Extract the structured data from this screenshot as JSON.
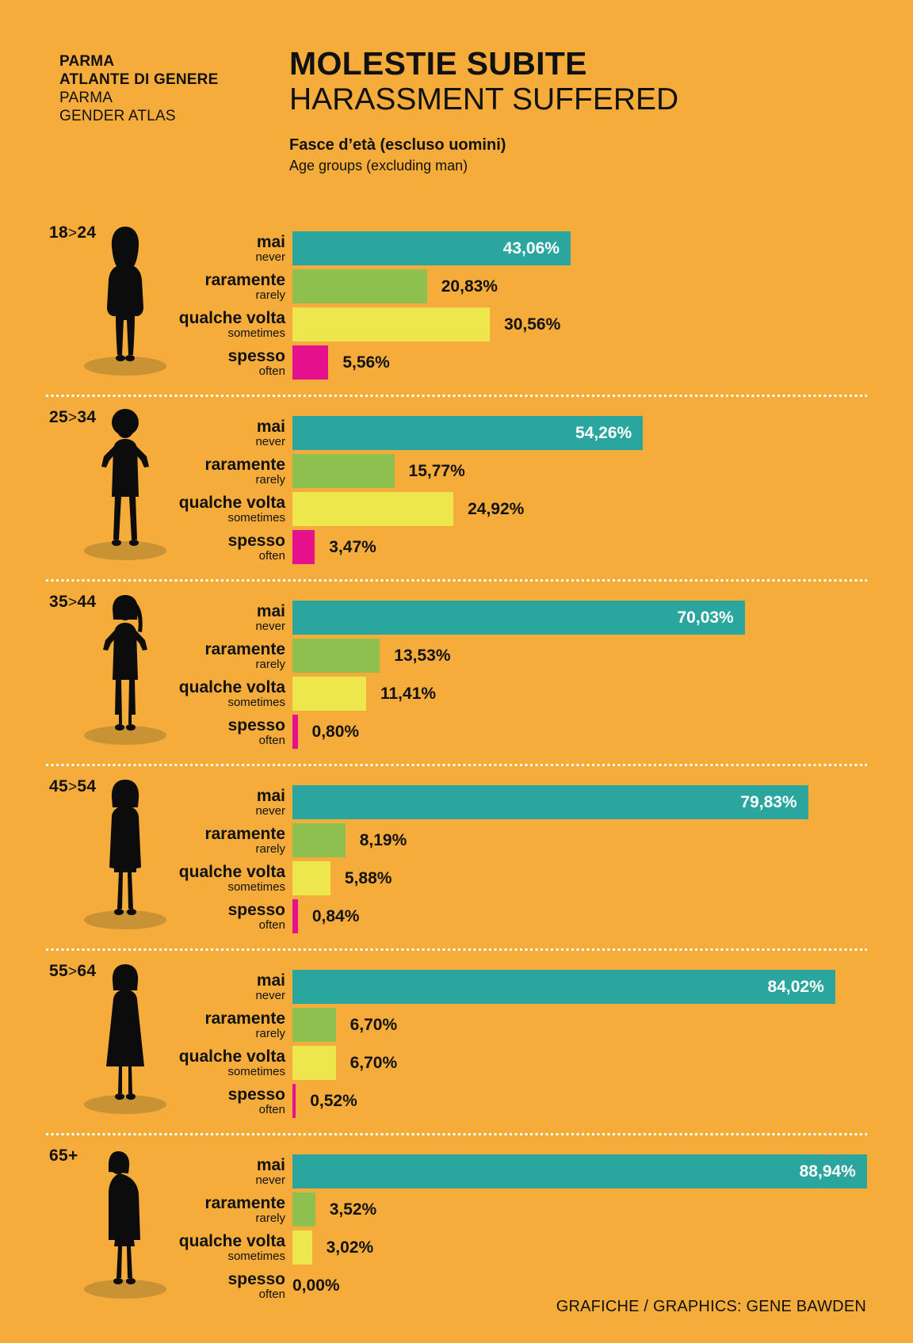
{
  "header": {
    "brand_lines": [
      "PARMA",
      "ATLANTE DI GENERE",
      "PARMA",
      "GENDER ATLAS"
    ],
    "title_it": "MOLESTIE SUBITE",
    "title_en": "HARASSMENT SUFFERED",
    "subtitle_it": "Fasce d’età (escluso uomini)",
    "subtitle_en": "Age groups (excluding man)"
  },
  "footer": {
    "credit": "GRAFICHE / GRAPHICS: GENE BAWDEN"
  },
  "colors": {
    "background": "#F5AC3B",
    "bar_never": "#2AA69E",
    "bar_rarely": "#8EC04F",
    "bar_sometimes": "#EDE74D",
    "bar_often": "#E5108C",
    "figure_shadow": "#C99234",
    "silhouette": "#0C0C0C",
    "separator": "#FFFFFF"
  },
  "chart_data": {
    "type": "bar",
    "orientation": "horizontal",
    "value_unit": "percent",
    "xlim": [
      0,
      100
    ],
    "title": "MOLESTIE SUBITE / HARASSMENT SUFFERED",
    "subtitle": "Fasce d’età (escluso uomini) / Age groups (excluding man)",
    "legend_position": "none",
    "grid": false,
    "categories": [
      {
        "it": "mai",
        "en": "never"
      },
      {
        "it": "raramente",
        "en": "rarely"
      },
      {
        "it": "qualche volta",
        "en": "sometimes"
      },
      {
        "it": "spesso",
        "en": "often"
      }
    ],
    "category_colors": [
      "#2AA69E",
      "#8EC04F",
      "#EDE74D",
      "#E5108C"
    ],
    "groups": [
      {
        "age_label": "18>24",
        "figure": "woman-18-24",
        "values": [
          43.06,
          20.83,
          30.56,
          5.56
        ],
        "display": [
          "43,06%",
          "20,83%",
          "30,56%",
          "5,56%"
        ]
      },
      {
        "age_label": "25>34",
        "figure": "woman-25-34",
        "values": [
          54.26,
          15.77,
          24.92,
          3.47
        ],
        "display": [
          "54,26%",
          "15,77%",
          "24,92%",
          "3,47%"
        ]
      },
      {
        "age_label": "35>44",
        "figure": "woman-35-44",
        "values": [
          70.03,
          13.53,
          11.41,
          0.8
        ],
        "display": [
          "70,03%",
          "13,53%",
          "11,41%",
          "0,80%"
        ]
      },
      {
        "age_label": "45>54",
        "figure": "woman-45-54",
        "values": [
          79.83,
          8.19,
          5.88,
          0.84
        ],
        "display": [
          "79,83%",
          "8,19%",
          "5,88%",
          "0,84%"
        ]
      },
      {
        "age_label": "55>64",
        "figure": "woman-55-64",
        "values": [
          84.02,
          6.7,
          6.7,
          0.52
        ],
        "display": [
          "84,02%",
          "6,70%",
          "6,70%",
          "0,52%"
        ]
      },
      {
        "age_label": "65+",
        "figure": "woman-65-plus",
        "values": [
          88.94,
          3.52,
          3.02,
          0.0
        ],
        "display": [
          "88,94%",
          "3,52%",
          "3,02%",
          "0,00%"
        ]
      }
    ]
  }
}
